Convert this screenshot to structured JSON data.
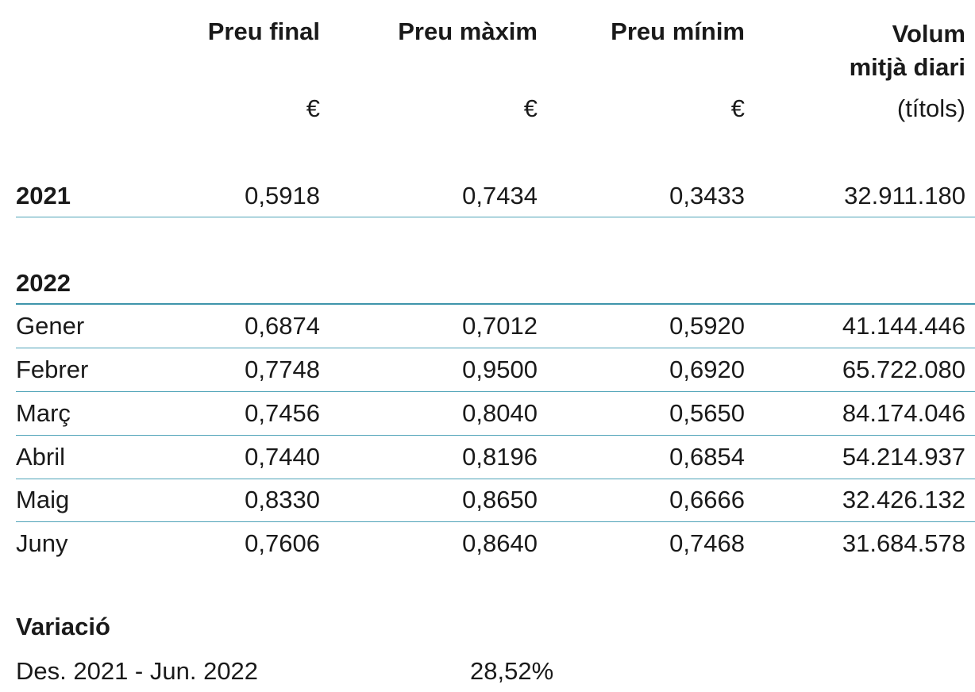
{
  "headers": {
    "preu_final": "Preu final",
    "preu_maxim": "Preu màxim",
    "preu_minim": "Preu mínim",
    "volum_line1": "Volum",
    "volum_line2": "mitjà diari",
    "unit_final": "€",
    "unit_maxim": "€",
    "unit_minim": "€",
    "unit_volum": "(títols)"
  },
  "year2021": {
    "label": "2021",
    "final": "0,5918",
    "maxim": "0,7434",
    "minim": "0,3433",
    "volum": "32.911.180"
  },
  "year2022": {
    "label": "2022",
    "rows": [
      {
        "month": "Gener",
        "final": "0,6874",
        "maxim": "0,7012",
        "minim": "0,5920",
        "volum": "41.144.446"
      },
      {
        "month": "Febrer",
        "final": "0,7748",
        "maxim": "0,9500",
        "minim": "0,6920",
        "volum": "65.722.080"
      },
      {
        "month": "Març",
        "final": "0,7456",
        "maxim": "0,8040",
        "minim": "0,5650",
        "volum": "84.174.046"
      },
      {
        "month": "Abril",
        "final": "0,7440",
        "maxim": "0,8196",
        "minim": "0,6854",
        "volum": "54.214.937"
      },
      {
        "month": "Maig",
        "final": "0,8330",
        "maxim": "0,8650",
        "minim": "0,6666",
        "volum": "32.426.132"
      },
      {
        "month": "Juny",
        "final": "0,7606",
        "maxim": "0,8640",
        "minim": "0,7468",
        "volum": "31.684.578"
      }
    ]
  },
  "variation": {
    "title": "Variació",
    "period": "Des. 2021 - Jun. 2022",
    "value": "28,52%"
  }
}
